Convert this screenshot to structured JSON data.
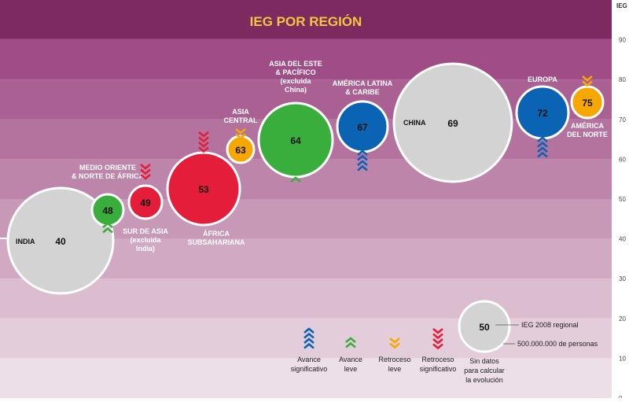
{
  "chart_data": {
    "type": "bubble",
    "title": "IEG POR REGIÓN",
    "ylabel": "IEG",
    "ylim": [
      0,
      100
    ],
    "y_ticks": [
      "0",
      "10",
      "20",
      "30",
      "40",
      "50",
      "60",
      "70",
      "80",
      "90"
    ],
    "points": [
      {
        "name": "INDIA",
        "value": 40,
        "label": "40",
        "color": "#d3d3d3",
        "trend": "none"
      },
      {
        "name": "MEDIO ORIENTE & NORTE DE ÁFRICA",
        "lines": [
          "MEDIO ORIENTE",
          "& NORTE DE ÁFRICA"
        ],
        "value": 48,
        "label": "48",
        "color": "#3aae3c",
        "trend": "avance-leve"
      },
      {
        "name": "SUR DE ASIA (excluida India)",
        "lines": [
          "SUR DE ASIA",
          "(excluida",
          "India)"
        ],
        "value": 49,
        "label": "49",
        "color": "#e41d3a",
        "trend": "retroceso-significativo"
      },
      {
        "name": "ÁFRICA SUBSAHARIANA",
        "lines": [
          "ÁFRICA",
          "SUBSAHARIANA"
        ],
        "value": 53,
        "label": "53",
        "color": "#e41d3a",
        "trend": "retroceso-significativo"
      },
      {
        "name": "ASIA CENTRAL",
        "lines": [
          "ASIA",
          "CENTRAL"
        ],
        "value": 63,
        "label": "63",
        "color": "#f7a800",
        "trend": "retroceso-leve"
      },
      {
        "name": "ASIA DEL ESTE & PACÍFICO (excluida China)",
        "lines": [
          "ASIA DEL ESTE",
          "& PACÍFICO",
          "(excluida",
          "China)"
        ],
        "value": 64,
        "label": "64",
        "color": "#3aae3c",
        "trend": "avance-leve"
      },
      {
        "name": "AMÉRICA LATINA & CARIBE",
        "lines": [
          "AMÉRICA LATINA",
          "& CARIBE"
        ],
        "value": 67,
        "label": "67",
        "color": "#0b63b4",
        "trend": "avance-significativo"
      },
      {
        "name": "CHINA",
        "value": 69,
        "label": "69",
        "color": "#d3d3d3",
        "trend": "none"
      },
      {
        "name": "EUROPA",
        "value": 72,
        "label": "72",
        "color": "#0b63b4",
        "trend": "avance-significativo"
      },
      {
        "name": "AMÉRICA DEL NORTE",
        "lines": [
          "AMÉRICA",
          "DEL NORTE"
        ],
        "value": 75,
        "label": "75",
        "color": "#f7a800",
        "trend": "retroceso-leve"
      }
    ],
    "legend": {
      "items": [
        {
          "key": "avance-significativo",
          "lines": [
            "Avance",
            "significativo"
          ],
          "color": "#0b63b4"
        },
        {
          "key": "avance-leve",
          "lines": [
            "Avance",
            "leve"
          ],
          "color": "#3aae3c"
        },
        {
          "key": "retroceso-leve",
          "lines": [
            "Retroceso",
            "leve"
          ],
          "color": "#f7a800"
        },
        {
          "key": "retroceso-significativo",
          "lines": [
            "Retroceso",
            "significativo"
          ],
          "color": "#e41d3a"
        }
      ],
      "sample_value": "50",
      "sample_value_note": "IEG 2008 regional",
      "sample_size_note": "500.000.000 de personas",
      "no_data_note": [
        "Sin datos",
        "para calcular",
        "la evolución"
      ]
    }
  }
}
